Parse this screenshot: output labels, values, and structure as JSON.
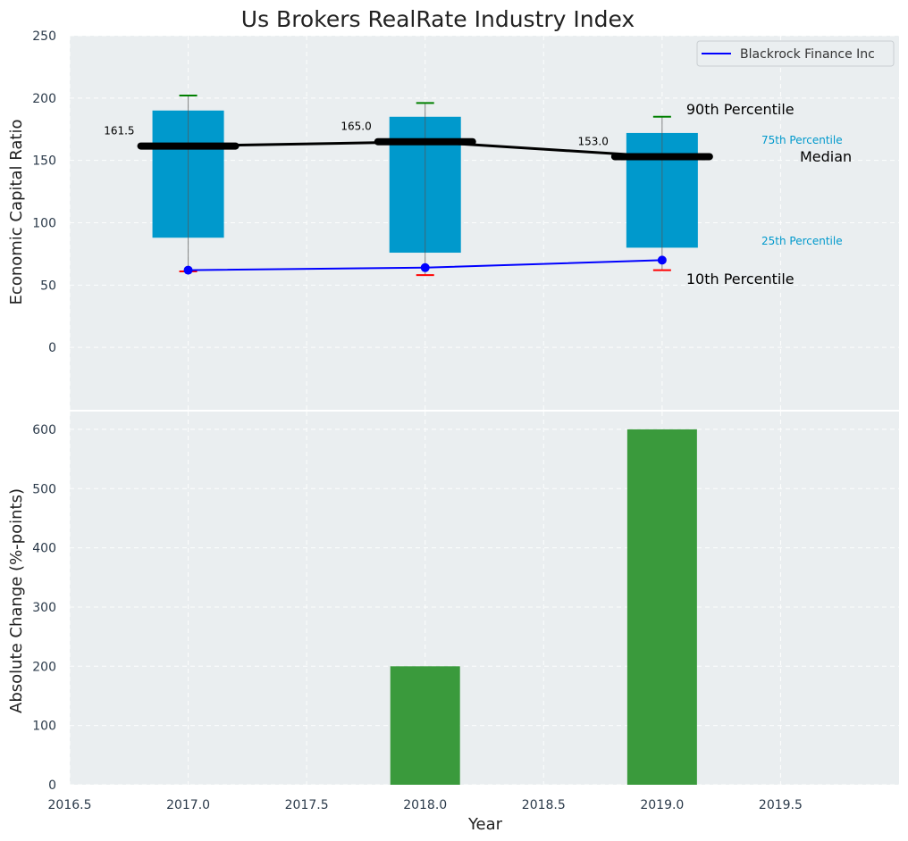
{
  "title": "Us Brokers RealRate Industry Index",
  "colors": {
    "panel_bg": "#eaeef0",
    "box": "#0099cc",
    "median": "#000000",
    "company": "#0000ff",
    "whisker_top": "#008000",
    "whisker_bottom": "#ff0000",
    "bar": "#3a9a3c",
    "text": "#2b3a4a",
    "pctl_label": "#0099cc"
  },
  "chart_data": [
    {
      "type": "box",
      "ylabel": "Economic Capital Ratio",
      "xlim": [
        2016.5,
        2020.0
      ],
      "ylim": [
        -50,
        250
      ],
      "yticks": [
        0,
        50,
        100,
        150,
        200,
        250
      ],
      "grid": true,
      "years": [
        2017,
        2018,
        2019
      ],
      "p10": [
        61,
        58,
        62
      ],
      "p25": [
        88,
        76,
        80
      ],
      "median": [
        161.5,
        165.0,
        153.0
      ],
      "p75": [
        190,
        185,
        172
      ],
      "p90": [
        202,
        196,
        185
      ],
      "median_labels": [
        "161.5",
        "165.0",
        "153.0"
      ],
      "series": [
        {
          "name": "Blackrock Finance Inc",
          "x": [
            2017,
            2018,
            2019
          ],
          "values": [
            62,
            64,
            70
          ]
        }
      ],
      "legend_position": "top-right",
      "annotations": {
        "p90": "90th Percentile",
        "p75": "75th Percentile",
        "median": "Median",
        "p25": "25th Percentile",
        "p10": "10th Percentile"
      }
    },
    {
      "type": "bar",
      "xlabel": "Year",
      "ylabel": "Absolute Change (%-points)",
      "xlim": [
        2016.5,
        2020.0
      ],
      "ylim": [
        0,
        630
      ],
      "xticks": [
        "2016.5",
        "2017.0",
        "2017.5",
        "2018.0",
        "2018.5",
        "2019.0",
        "2019.5"
      ],
      "yticks": [
        0,
        100,
        200,
        300,
        400,
        500,
        600
      ],
      "grid": true,
      "x": [
        2017,
        2018,
        2019
      ],
      "values": [
        0,
        200,
        600
      ]
    }
  ]
}
